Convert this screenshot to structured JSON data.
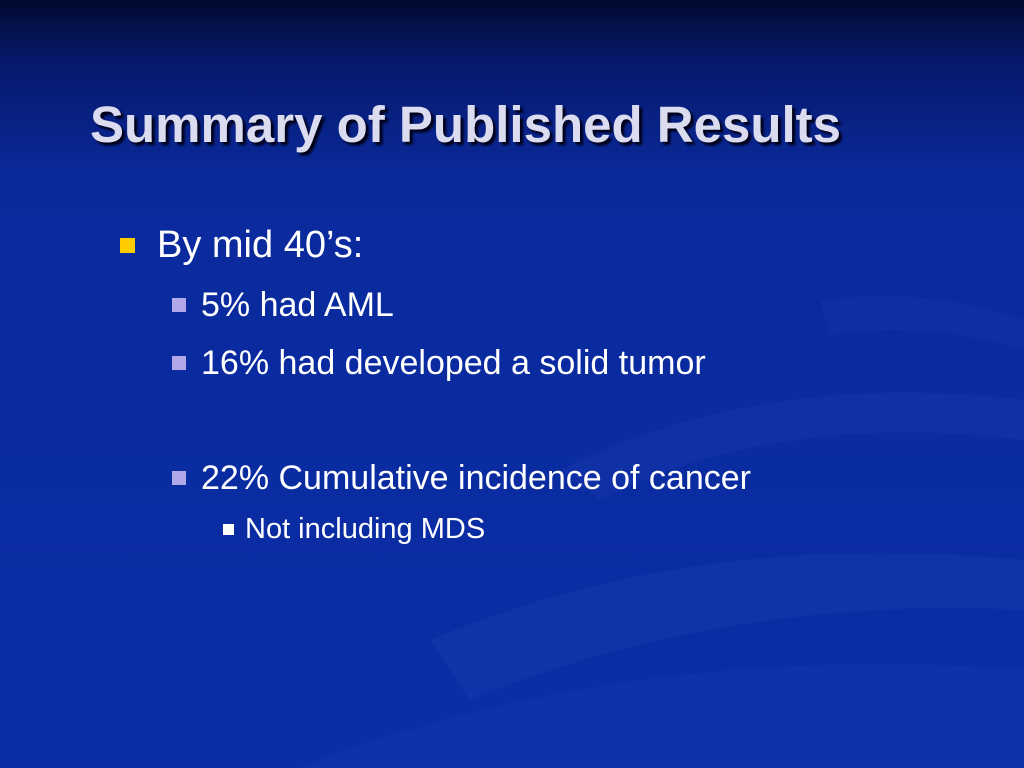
{
  "slide": {
    "title": "Summary of Published Results",
    "bullets": [
      {
        "level": 1,
        "text": "By mid 40’s:"
      },
      {
        "level": 2,
        "text": "5% had AML"
      },
      {
        "level": 2,
        "text": "16% had developed a solid tumor"
      },
      {
        "level": 2,
        "text": "22% Cumulative incidence of cancer"
      },
      {
        "level": 3,
        "text": "Not including MDS"
      }
    ]
  },
  "colors": {
    "background": "#0a2a9c",
    "title_text": "#dcdcf0",
    "body_text": "#ffffff",
    "level1_marker": "#ffcc00",
    "level2_marker": "#b0a8e8",
    "level3_marker": "#ffffff"
  }
}
